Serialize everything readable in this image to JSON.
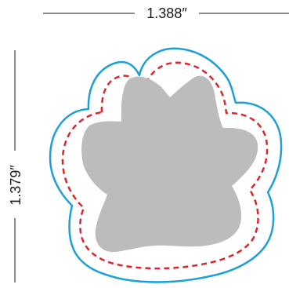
{
  "dimensions": {
    "width_label": "1.388″",
    "height_label": "1.379″"
  },
  "colors": {
    "cut_line": "#1ba0d8",
    "safety_line": "#e0242a",
    "artwork": "#bcbcbc",
    "dimension_line": "#1a1a1a"
  }
}
